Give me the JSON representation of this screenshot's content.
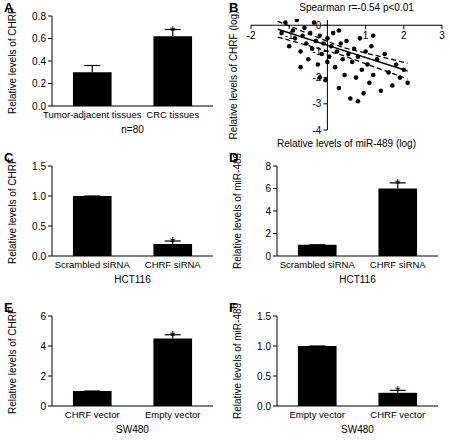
{
  "chart_data": [
    {
      "type": "bar",
      "label": "A",
      "y_label": "Relative levels of CHRF",
      "x_label": "n=80",
      "categories": [
        "Tumor-adjacent tissues",
        "CRC tissues"
      ],
      "values": [
        0.3,
        0.62
      ],
      "errors": [
        0.06,
        0.06
      ],
      "color": "#000000",
      "ylim": [
        0,
        0.8
      ],
      "yticks": [
        {
          "value": 0,
          "label": "0.0"
        },
        {
          "value": 0.2,
          "label": "0.2"
        },
        {
          "value": 0.4,
          "label": "0.4"
        },
        {
          "value": 0.6,
          "label": "0.6"
        },
        {
          "value": 0.8,
          "label": "0.8"
        }
      ],
      "annotations": [
        {
          "text": "*",
          "category": "CRC tissues"
        }
      ]
    },
    {
      "type": "scatter",
      "label": "B",
      "title": "Spearman r=-0.54   p<0.01",
      "x_label": "Relative levels of miR-489 (log)",
      "y_label": "Relative levels of CHRF (log)",
      "color": "#000000",
      "marker": "circle",
      "x": [
        -1.2,
        -1.1,
        -1.0,
        -0.9,
        -0.85,
        -0.8,
        -0.7,
        -0.65,
        -0.6,
        -0.55,
        -0.5,
        -0.45,
        -0.4,
        -0.35,
        -0.3,
        -0.25,
        -0.2,
        -0.15,
        -0.1,
        -0.05,
        0,
        0.05,
        0.1,
        0.15,
        0.2,
        0.25,
        0.3,
        0.35,
        0.4,
        0.45,
        0.5,
        0.55,
        0.6,
        0.65,
        0.7,
        0.75,
        0.8,
        0.85,
        0.9,
        0.95,
        1.0,
        1.05,
        1.1,
        1.15,
        1.2,
        1.3,
        1.4,
        1.5,
        1.6,
        1.7,
        1.8,
        1.9,
        2.0,
        2.1,
        -0.7,
        -0.2,
        0.3,
        0.8,
        1.2,
        0.0
      ],
      "values": [
        -0.3,
        0.1,
        -0.8,
        -0.2,
        -0.5,
        0.2,
        -1.0,
        -0.4,
        -0.1,
        -0.7,
        -1.3,
        -0.3,
        -0.9,
        0.1,
        -0.6,
        -1.5,
        -0.4,
        -1.1,
        -0.7,
        -2.1,
        -0.5,
        -1.2,
        -0.8,
        -0.3,
        -1.6,
        -1.0,
        -2.4,
        -0.7,
        -1.3,
        -1.9,
        -0.6,
        -1.1,
        -2.8,
        -1.4,
        -0.9,
        -2.0,
        -1.2,
        -0.5,
        -1.7,
        -2.6,
        -1.0,
        -1.5,
        -2.2,
        -0.8,
        -1.9,
        -1.3,
        -2.5,
        -1.1,
        -1.8,
        -2.3,
        -1.5,
        -2.0,
        -1.7,
        -2.2,
        -1.6,
        -2.0,
        -0.2,
        -2.9,
        -0.4,
        -1.4
      ],
      "regression": {
        "x": [
          -1.3,
          0.4,
          2.1
        ],
        "y": [
          -0.15,
          -0.95,
          -1.75
        ],
        "upper": [
          0.15,
          -0.85,
          -1.45
        ],
        "lower": [
          -0.45,
          -1.15,
          -2.05
        ]
      },
      "xlim": [
        -2,
        3
      ],
      "xticks": [
        -2,
        -1,
        1,
        2,
        3
      ],
      "ylim": [
        -4,
        0.2
      ],
      "yticks": [
        0,
        -1,
        -2,
        -3,
        -4
      ]
    },
    {
      "type": "bar",
      "label": "C",
      "y_label": "Relative levels of CHRF",
      "x_label": "HCT116",
      "categories": [
        "Scrambled siRNA",
        "CHRF siRNA"
      ],
      "values": [
        1.0,
        0.2
      ],
      "errors": [
        0,
        0.05
      ],
      "color": "#000000",
      "ylim": [
        0,
        1.5
      ],
      "yticks": [
        {
          "value": 0,
          "label": "0.0"
        },
        {
          "value": 0.5,
          "label": "0.5"
        },
        {
          "value": 1,
          "label": "1.0"
        },
        {
          "value": 1.5,
          "label": "1.5"
        }
      ],
      "annotations": [
        {
          "text": "*",
          "category": "CHRF siRNA"
        }
      ]
    },
    {
      "type": "bar",
      "label": "D",
      "y_label": "Relative levels of miR-489",
      "x_label": "HCT116",
      "categories": [
        "Scrambled siRNA",
        "CHRF siRNA"
      ],
      "values": [
        1.0,
        6.0
      ],
      "errors": [
        0,
        0.5
      ],
      "color": "#000000",
      "ylim": [
        0,
        8
      ],
      "yticks": [
        0,
        2,
        4,
        6,
        8
      ],
      "annotations": [
        {
          "text": "*",
          "category": "CHRF siRNA"
        }
      ]
    },
    {
      "type": "bar",
      "label": "E",
      "y_label": "Relative levels of CHRF",
      "x_label": "SW480",
      "categories": [
        "CHRF vector",
        "Empty vector"
      ],
      "values": [
        1.0,
        4.5
      ],
      "errors": [
        0,
        0.25
      ],
      "color": "#000000",
      "ylim": [
        0,
        6
      ],
      "yticks": [
        0,
        2,
        4,
        6
      ],
      "annotations": [
        {
          "text": "*",
          "category": "Empty vector"
        }
      ]
    },
    {
      "type": "bar",
      "label": "F",
      "y_label": "Relative levels of miR-489",
      "x_label": "SW480",
      "categories": [
        "Empty vector",
        "CHRF vector"
      ],
      "values": [
        1.0,
        0.22
      ],
      "errors": [
        0,
        0.04
      ],
      "color": "#000000",
      "ylim": [
        0,
        1.5
      ],
      "yticks": [
        {
          "value": 0,
          "label": "0.0"
        },
        {
          "value": 0.5,
          "label": "0.5"
        },
        {
          "value": 1,
          "label": "1.0"
        },
        {
          "value": 1.5,
          "label": "1.5"
        }
      ],
      "annotations": [
        {
          "text": "*",
          "category": "CHRF vector"
        }
      ]
    }
  ]
}
